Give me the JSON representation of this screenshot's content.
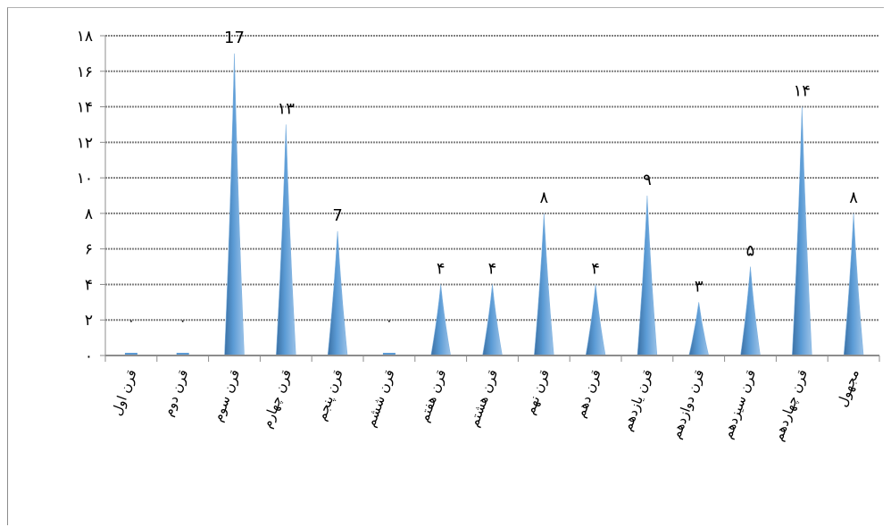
{
  "chart_data": {
    "type": "bar",
    "categories": [
      "قرن اول",
      "قرن دوم",
      "قرن سوم",
      "قرن چهارم",
      "قرن پنجم",
      "قرن ششم",
      "قرن هفتم",
      "قرن هشتم",
      "قرن نهم",
      "قرن دهم",
      "قرن یازدهم",
      "قرن دوازدهم",
      "قرن سیزدهم",
      "قرن چهاردهم",
      "مجهول"
    ],
    "values": [
      0,
      0,
      17,
      13,
      7,
      0,
      4,
      4,
      8,
      4,
      9,
      3,
      5,
      14,
      8
    ],
    "value_labels": [
      "٠",
      "٠",
      "17",
      "١٣",
      "7",
      "٠",
      "۴",
      "۴",
      "٨",
      "۴",
      "٩",
      "٣",
      "۵",
      "١۴",
      "٨"
    ],
    "y_ticks": [
      0,
      2,
      4,
      6,
      8,
      10,
      12,
      14,
      16,
      18
    ],
    "y_tick_labels": [
      "٠",
      "٢",
      "۴",
      "۶",
      "٨",
      "١٠",
      "١٢",
      "١۴",
      "١۶",
      "١٨"
    ],
    "ylim": [
      0,
      18
    ],
    "grid": true,
    "title": "",
    "xlabel": "",
    "ylabel": "",
    "colors": {
      "bar": "#5b9bd5",
      "bar_dark": "#3a6fa3",
      "grid": "#7f7f7f",
      "axis": "#8c8c8c",
      "text": "#000000"
    }
  }
}
